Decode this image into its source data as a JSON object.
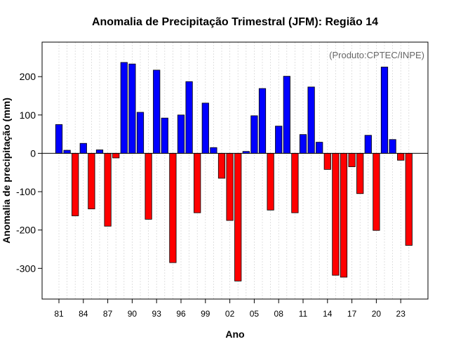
{
  "chart_data": {
    "type": "bar",
    "title": "Anomalia de Precipitação Trimestral (JFM): Região 14",
    "xlabel": "Ano",
    "ylabel": "Anomalia de precipitação (mm)",
    "annotation": "(Produto:CPTEC/INPE)",
    "ylim": [
      -380,
      290
    ],
    "yticks": [
      -300,
      -200,
      -100,
      0,
      100,
      200
    ],
    "xtick_labels": [
      "81",
      "84",
      "87",
      "90",
      "93",
      "96",
      "99",
      "02",
      "05",
      "08",
      "11",
      "14",
      "17",
      "20",
      "23"
    ],
    "xtick_every": 3,
    "grid": true,
    "colors": {
      "positive": "#0000ff",
      "negative": "#ff0000"
    },
    "years": [
      1981,
      1982,
      1983,
      1984,
      1985,
      1986,
      1987,
      1988,
      1989,
      1990,
      1991,
      1992,
      1993,
      1994,
      1995,
      1996,
      1997,
      1998,
      1999,
      2000,
      2001,
      2002,
      2003,
      2004,
      2005,
      2006,
      2007,
      2008,
      2009,
      2010,
      2011,
      2012,
      2013,
      2014,
      2015,
      2016,
      2017,
      2018,
      2019,
      2020,
      2021,
      2022,
      2023,
      2024
    ],
    "values": [
      75,
      8,
      -163,
      26,
      -145,
      9,
      -190,
      -12,
      237,
      233,
      107,
      -172,
      217,
      92,
      -285,
      100,
      187,
      -155,
      131,
      15,
      -65,
      -175,
      -333,
      5,
      98,
      169,
      -148,
      71,
      201,
      -155,
      49,
      173,
      29,
      -42,
      -318,
      -323,
      -35,
      -105,
      47,
      -201,
      225,
      36,
      -18,
      -240
    ]
  }
}
